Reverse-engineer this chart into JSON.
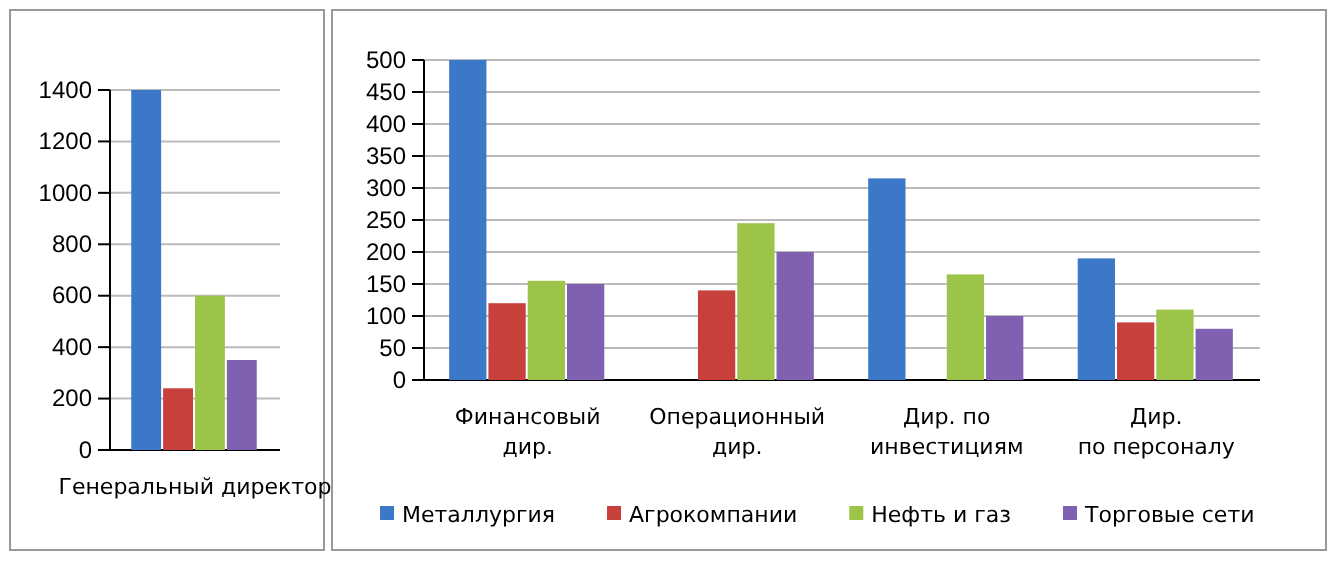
{
  "chart_data": [
    {
      "type": "bar",
      "categories": [
        "Генеральный директор"
      ],
      "series": [
        {
          "color": "#3c78c8",
          "values": [
            1400
          ]
        },
        {
          "color": "#c8403c",
          "values": [
            240
          ]
        },
        {
          "color": "#9bc448",
          "values": [
            600
          ]
        },
        {
          "color": "#8060b0",
          "values": [
            350
          ]
        }
      ],
      "ylim": [
        0,
        1400
      ],
      "yticks": [
        0,
        200,
        400,
        600,
        800,
        1000,
        1200,
        1400
      ],
      "grid": "y"
    },
    {
      "type": "bar",
      "categories": [
        "Финансовый\nдир.",
        "Операционный\nдир.",
        "Дир. по\nинвестициям",
        "Дир.\nпо персоналу"
      ],
      "series": [
        {
          "name": "Металлургия",
          "color": "#3c78c8",
          "values": [
            500,
            null,
            315,
            190
          ]
        },
        {
          "name": "Агрокомпании",
          "color": "#c8403c",
          "values": [
            120,
            140,
            null,
            90
          ]
        },
        {
          "name": "Нефть и газ",
          "color": "#9bc448",
          "values": [
            155,
            245,
            165,
            110
          ]
        },
        {
          "name": "Торговые сети",
          "color": "#8060b0",
          "values": [
            150,
            200,
            100,
            80
          ]
        }
      ],
      "ylim": [
        0,
        500
      ],
      "yticks": [
        0,
        50,
        100,
        150,
        200,
        250,
        300,
        350,
        400,
        450,
        500
      ],
      "grid": "y",
      "legend": "bottom"
    }
  ]
}
